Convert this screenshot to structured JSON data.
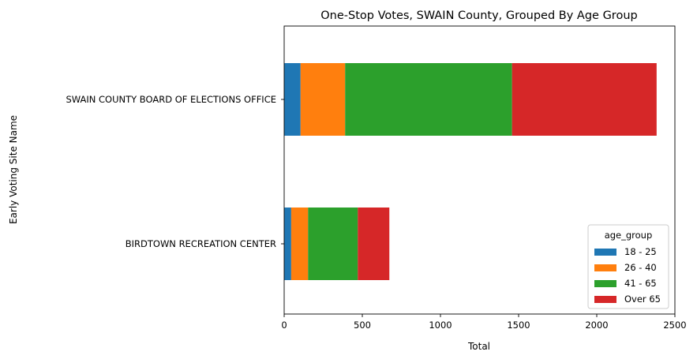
{
  "chart_data": {
    "type": "bar",
    "orientation": "horizontal",
    "stacked": true,
    "title": "One-Stop Votes, SWAIN County, Grouped By Age Group",
    "xlabel": "Total",
    "ylabel": "Early Voting Site Name",
    "xlim": [
      0,
      2500
    ],
    "xticks": [
      0,
      500,
      1000,
      1500,
      2000,
      2500
    ],
    "categories": [
      "SWAIN COUNTY BOARD OF ELECTIONS OFFICE",
      "BIRDTOWN RECREATION CENTER"
    ],
    "series": [
      {
        "name": "18 - 25",
        "color": "#1f77b4",
        "values": [
          105,
          45
        ]
      },
      {
        "name": "26 - 40",
        "color": "#ff7f0e",
        "values": [
          285,
          108
        ]
      },
      {
        "name": "41 - 65",
        "color": "#2ca02c",
        "values": [
          1068,
          318
        ]
      },
      {
        "name": "Over 65",
        "color": "#d62728",
        "values": [
          925,
          202
        ]
      }
    ],
    "grid": false,
    "legend": {
      "title": "age_group",
      "position": "lower-right"
    }
  }
}
